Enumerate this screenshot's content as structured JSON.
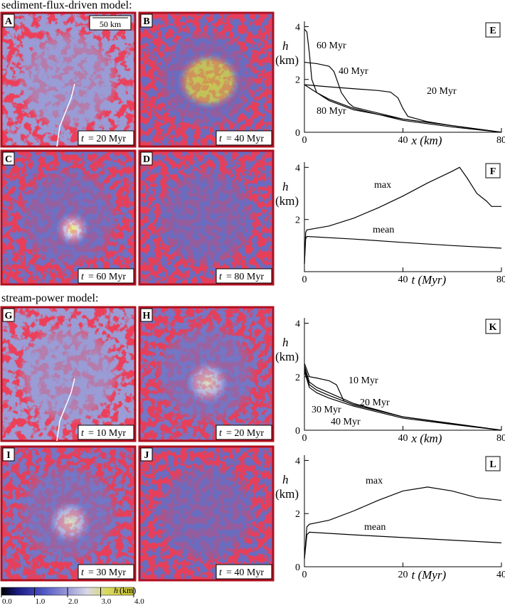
{
  "headings": [
    "sediment-flux-driven model:",
    "stream-power model:"
  ],
  "scale_bar": "50 km",
  "maps": [
    {
      "letter": "A",
      "var": "t",
      "time": "= 20 Myr",
      "style": "early"
    },
    {
      "letter": "B",
      "var": "t",
      "time": "= 40 Myr",
      "style": "plateau"
    },
    {
      "letter": "C",
      "var": "t",
      "time": "= 60 Myr",
      "style": "peak"
    },
    {
      "letter": "D",
      "var": "t",
      "time": "= 80 Myr",
      "style": "late"
    },
    {
      "letter": "G",
      "var": "t",
      "time": "= 10 Myr",
      "style": "early"
    },
    {
      "letter": "H",
      "var": "t",
      "time": "= 20 Myr",
      "style": "mid"
    },
    {
      "letter": "I",
      "var": "t",
      "time": "= 30 Myr",
      "style": "mid"
    },
    {
      "letter": "J",
      "var": "t",
      "time": "= 40 Myr",
      "style": "late"
    }
  ],
  "colorbar": {
    "var": "h",
    "unit": "(km)",
    "ticks": [
      {
        "value": 0,
        "label": "0.0"
      },
      {
        "value": 1,
        "label": "1.0"
      },
      {
        "value": 2,
        "label": "2.0"
      },
      {
        "value": 3,
        "label": "3.0"
      },
      {
        "value": 4,
        "label": "4.0"
      }
    ]
  },
  "chart_data": [
    {
      "type": "line",
      "panel": "E",
      "x_label": "x (km)",
      "y_var": "h",
      "y_unit": "(km)",
      "xlim": [
        0,
        80
      ],
      "ylim": [
        0,
        4.2
      ],
      "xticks": [
        0,
        40,
        80
      ],
      "yticks": [
        0,
        2,
        4
      ],
      "series": [
        {
          "name": "20 Myr",
          "color": "#000",
          "x": [
            0,
            10,
            20,
            30,
            35,
            38,
            40,
            42,
            50,
            60,
            80
          ],
          "values": [
            1.8,
            1.72,
            1.65,
            1.58,
            1.52,
            1.3,
            0.9,
            0.6,
            0.4,
            0.25,
            0
          ]
        },
        {
          "name": "40 Myr",
          "color": "#000",
          "x": [
            0,
            5,
            10,
            12,
            15,
            18,
            20,
            40,
            60,
            80
          ],
          "values": [
            2.65,
            2.6,
            2.5,
            2.3,
            1.5,
            1.1,
            0.95,
            0.5,
            0.25,
            0
          ]
        },
        {
          "name": "60 Myr",
          "color": "#000",
          "x": [
            0,
            1,
            2,
            3,
            5,
            10,
            20,
            40,
            60,
            80
          ],
          "values": [
            3.9,
            3.8,
            3.0,
            2.0,
            1.5,
            1.2,
            0.85,
            0.5,
            0.25,
            0
          ]
        },
        {
          "name": "80 Myr",
          "color": "#000",
          "x": [
            0,
            5,
            10,
            20,
            40,
            60,
            80
          ],
          "values": [
            1.8,
            1.5,
            1.25,
            0.9,
            0.45,
            0.2,
            0
          ]
        }
      ]
    },
    {
      "type": "line",
      "panel": "F",
      "x_label": "t (Myr)",
      "y_var": "h",
      "y_unit": "(km)",
      "xlim": [
        0,
        80
      ],
      "ylim": [
        0,
        4.2
      ],
      "xticks": [
        0,
        40,
        80
      ],
      "yticks": [
        2,
        4
      ],
      "series": [
        {
          "name": "max",
          "color": "#000",
          "x": [
            0,
            0.5,
            1,
            10,
            20,
            30,
            40,
            50,
            60,
            63,
            66,
            70,
            74,
            76,
            80
          ],
          "values": [
            0.3,
            1.5,
            1.6,
            1.75,
            2.05,
            2.45,
            2.9,
            3.4,
            3.85,
            4.0,
            3.6,
            3.0,
            2.7,
            2.5,
            2.5
          ]
        },
        {
          "name": "mean",
          "color": "#000",
          "x": [
            0,
            0.5,
            1,
            20,
            40,
            60,
            80
          ],
          "values": [
            0.3,
            1.25,
            1.35,
            1.25,
            1.12,
            1.0,
            0.9
          ]
        }
      ]
    },
    {
      "type": "line",
      "panel": "K",
      "x_label": "x (km)",
      "y_var": "h",
      "y_unit": "(km)",
      "xlim": [
        0,
        80
      ],
      "ylim": [
        0,
        4.2
      ],
      "xticks": [
        0,
        40,
        80
      ],
      "yticks": [
        0,
        2,
        4
      ],
      "series": [
        {
          "name": "10 Myr",
          "color": "#000",
          "x": [
            0,
            2,
            5,
            10,
            13,
            16,
            20,
            40,
            60,
            80
          ],
          "values": [
            2.5,
            2.0,
            1.95,
            1.85,
            1.7,
            1.1,
            0.95,
            0.5,
            0.25,
            0
          ]
        },
        {
          "name": "20 Myr",
          "color": "#000",
          "x": [
            0,
            2,
            5,
            10,
            20,
            40,
            60,
            80
          ],
          "values": [
            2.4,
            1.8,
            1.6,
            1.4,
            1.0,
            0.5,
            0.25,
            0
          ]
        },
        {
          "name": "30 Myr",
          "color": "#000",
          "x": [
            0,
            2,
            5,
            10,
            20,
            40,
            60,
            80
          ],
          "values": [
            2.3,
            1.7,
            1.5,
            1.3,
            0.95,
            0.5,
            0.25,
            0
          ]
        },
        {
          "name": "40 Myr",
          "color": "#000",
          "x": [
            0,
            2,
            5,
            10,
            20,
            40,
            60,
            80
          ],
          "values": [
            2.2,
            1.6,
            1.4,
            1.2,
            0.9,
            0.45,
            0.22,
            0
          ]
        }
      ]
    },
    {
      "type": "line",
      "panel": "L",
      "x_label": "t (Myr)",
      "y_var": "h",
      "y_unit": "(km)",
      "xlim": [
        0,
        40
      ],
      "ylim": [
        0,
        4.2
      ],
      "xticks": [
        0,
        20,
        40
      ],
      "yticks": [
        0,
        2,
        4
      ],
      "series": [
        {
          "name": "max",
          "color": "#000",
          "x": [
            0,
            0.5,
            1,
            5,
            10,
            15,
            20,
            25,
            30,
            35,
            40
          ],
          "values": [
            0.3,
            1.5,
            1.6,
            1.75,
            2.1,
            2.5,
            2.85,
            3.0,
            2.85,
            2.6,
            2.5
          ]
        },
        {
          "name": "mean",
          "color": "#000",
          "x": [
            0,
            0.5,
            1,
            10,
            20,
            30,
            40
          ],
          "values": [
            0.3,
            1.2,
            1.3,
            1.2,
            1.1,
            1.0,
            0.9
          ]
        }
      ]
    }
  ]
}
